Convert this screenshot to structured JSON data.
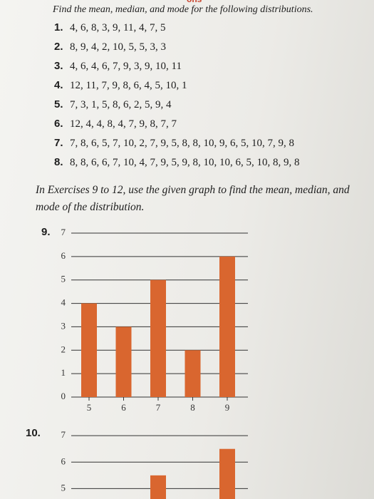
{
  "header": {
    "fragment": "ons",
    "instruction": "Find the mean, median, and mode for the following distributions."
  },
  "exercises": [
    {
      "number": "1.",
      "text": "4, 6, 8, 3, 9, 11, 4, 7, 5"
    },
    {
      "number": "2.",
      "text": "8, 9, 4, 2, 10, 5, 5, 3, 3"
    },
    {
      "number": "3.",
      "text": "4, 6, 4, 6, 7, 9, 3, 9, 10, 11"
    },
    {
      "number": "4.",
      "text": "12, 11, 7, 9, 8, 6, 4, 5, 10, 1"
    },
    {
      "number": "5.",
      "text": "7, 3, 1, 5, 8, 6, 2, 5, 9, 4"
    },
    {
      "number": "6.",
      "text": "12, 4, 4, 8, 4, 7, 9, 8, 7, 7"
    },
    {
      "number": "7.",
      "text": "7, 8, 6, 5, 7, 10, 2, 7, 9, 5, 8, 8, 10, 9, 6, 5, 10, 7, 9, 8"
    },
    {
      "number": "8.",
      "text": "8, 8, 6, 6, 7, 10, 4, 7, 9, 5, 9, 8, 10, 10, 6, 5, 10, 8, 9, 8"
    }
  ],
  "section_instruction": "In Exercises 9 to 12, use the given graph to find the mean, median, and mode of the distribution.",
  "graphs": [
    {
      "number": "9.",
      "chart_data": {
        "type": "bar",
        "categories": [
          "5",
          "6",
          "7",
          "8",
          "9"
        ],
        "values": [
          4,
          3,
          5,
          2,
          6
        ],
        "color": "#d9662f",
        "ylim": [
          0,
          7
        ],
        "yticks": [
          0,
          1,
          2,
          3,
          4,
          5,
          6,
          7
        ],
        "grid": true
      }
    },
    {
      "number": "10.",
      "chart_data": {
        "type": "bar",
        "categories": [
          null,
          null,
          null,
          null,
          null
        ],
        "values": [
          null,
          null,
          5.5,
          null,
          6.5
        ],
        "color": "#d9662f",
        "ylim": [
          4.5,
          7.3
        ],
        "yticks": [
          5,
          6,
          7
        ],
        "grid": true
      }
    }
  ]
}
